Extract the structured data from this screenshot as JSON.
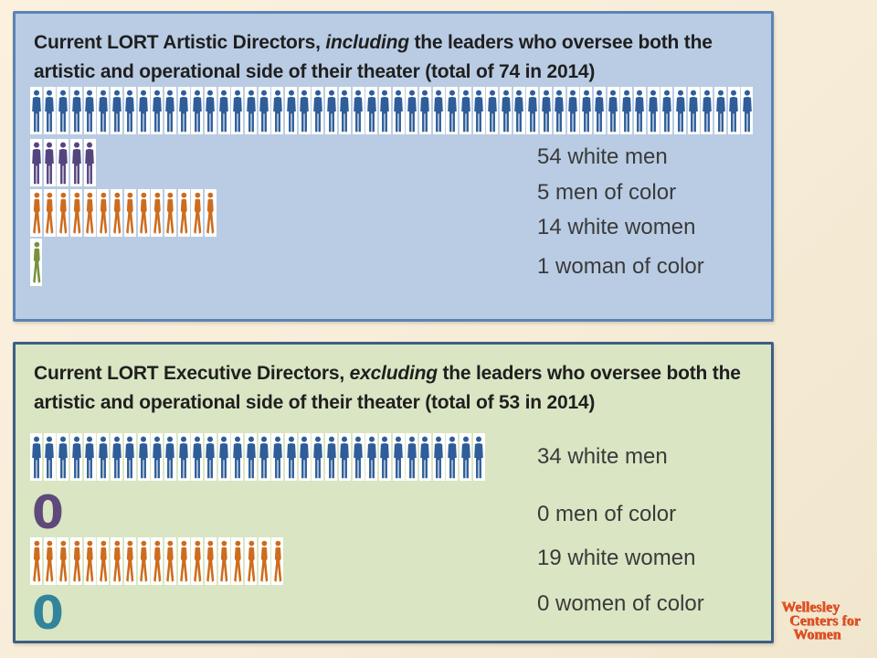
{
  "page": {
    "background": "#f6ecd8"
  },
  "logo": {
    "lines": [
      "Wellesley",
      "Centers for",
      "Women"
    ],
    "color": "#e8521c"
  },
  "chart_data": [
    {
      "type": "pictogram",
      "title_parts": {
        "pre": "Current LORT Artistic Directors, ",
        "italic": "including",
        "post": " the leaders who oversee both the artistic and operational side of their theater (total of 74 in 2014)"
      },
      "total": 74,
      "year": 2014,
      "panel_fill": "#b9cce4",
      "panel_border": "#5b83b6",
      "rows": [
        {
          "label": "54 white men",
          "count": 54,
          "icon": "man",
          "color": "#2e5d99"
        },
        {
          "label": "5 men of color",
          "count": 5,
          "icon": "man",
          "color": "#55457e"
        },
        {
          "label": "14 white women",
          "count": 14,
          "icon": "woman",
          "color": "#cd6c1d"
        },
        {
          "label": "1 woman of color",
          "count": 1,
          "icon": "woman",
          "color": "#76923c"
        }
      ]
    },
    {
      "type": "pictogram",
      "title_parts": {
        "pre": "Current LORT Executive Directors, ",
        "italic": "excluding",
        "post": " the leaders who oversee both the artistic and operational side of their theater (total of 53 in 2014)"
      },
      "total": 53,
      "year": 2014,
      "panel_fill": "#dae5c3",
      "panel_border": "#3d5e84",
      "rows": [
        {
          "label": "34 white men",
          "count": 34,
          "icon": "man",
          "color": "#2e5d99"
        },
        {
          "label": "0 men of color",
          "count": 0,
          "icon": "man",
          "zero_color": "#5f497a"
        },
        {
          "label": "19 white women",
          "count": 19,
          "icon": "woman",
          "color": "#cd6c1d"
        },
        {
          "label": "0 women of color",
          "count": 0,
          "icon": "woman",
          "zero_color": "#31849b"
        }
      ]
    }
  ]
}
